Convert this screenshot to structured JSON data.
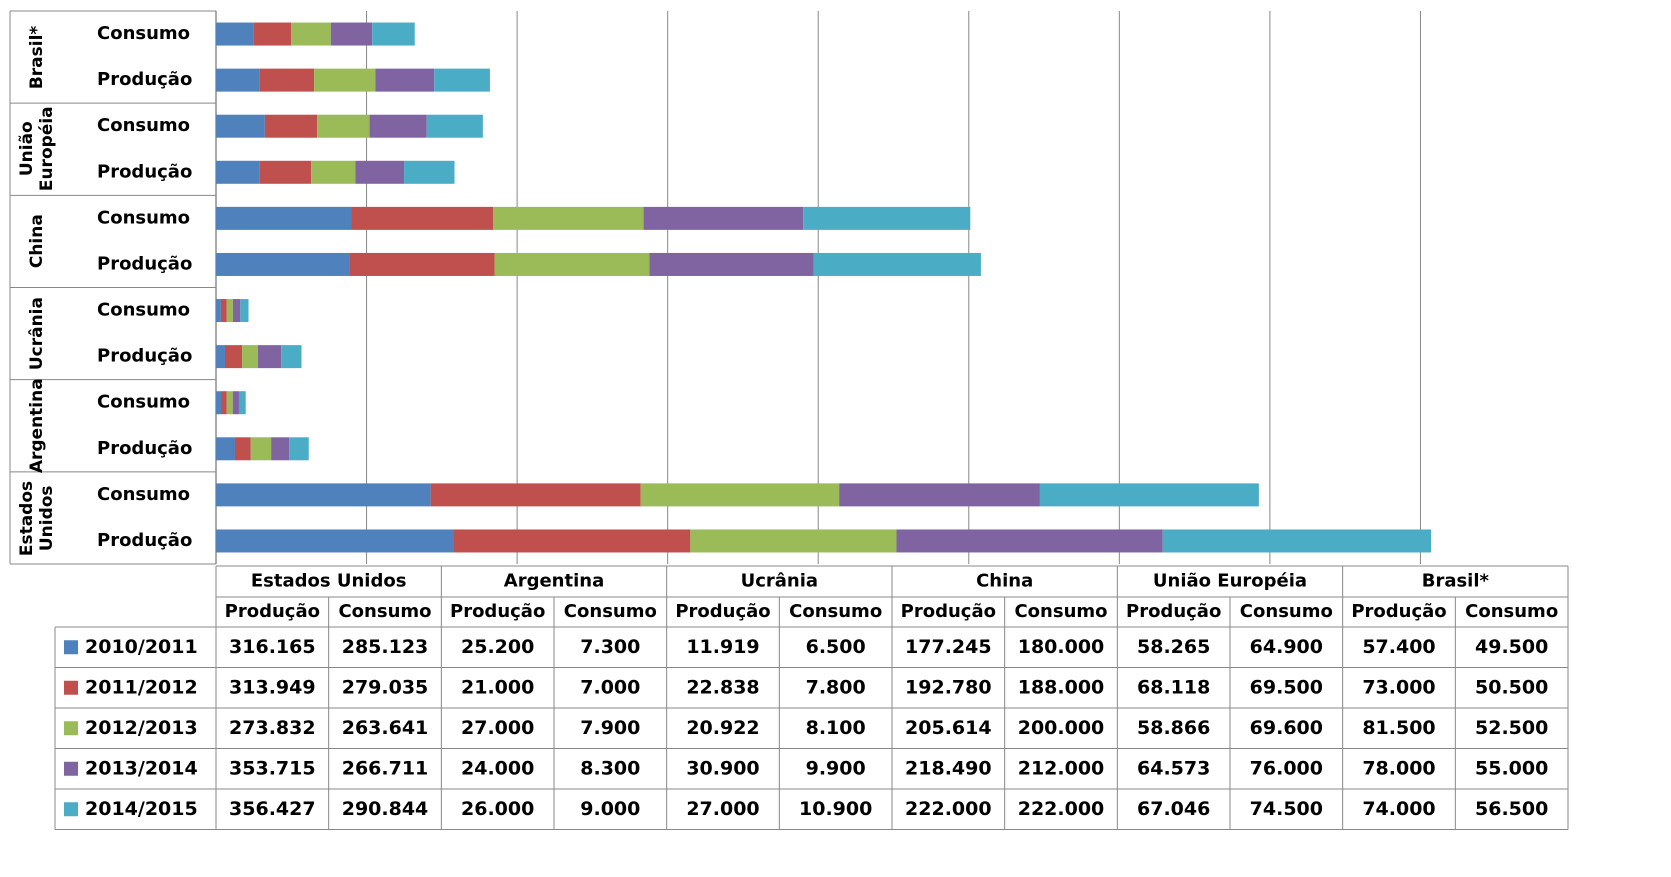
{
  "chart_data": {
    "type": "stacked-bar-horizontal",
    "groups": [
      "Estados Unidos",
      "Argentina",
      "Ucrânia",
      "China",
      "União Européia",
      "Brasil*"
    ],
    "categories": [
      "Produção",
      "Consumo",
      "Produção",
      "Consumo",
      "Produção",
      "Consumo",
      "Produção",
      "Consumo",
      "Produção",
      "Consumo",
      "Produção",
      "Consumo"
    ],
    "xlim": [
      0,
      1800000
    ],
    "xticks": [
      0,
      200000,
      400000,
      600000,
      800000,
      1000000,
      1200000,
      1400000,
      1600000,
      1800000
    ],
    "grid": true,
    "series": [
      {
        "name": "2010/2011",
        "color": "#4f81bd",
        "values": [
          316165,
          285123,
          25200,
          7300,
          11919,
          6500,
          177245,
          180000,
          58265,
          64900,
          57400,
          49500
        ],
        "value_labels": [
          "316.165",
          "285.123",
          "25.200",
          "7.300",
          "11.919",
          "6.500",
          "177.245",
          "180.000",
          "58.265",
          "64.900",
          "57.400",
          "49.500"
        ]
      },
      {
        "name": "2011/2012",
        "color": "#c0504d",
        "values": [
          313949,
          279035,
          21000,
          7000,
          22838,
          7800,
          192780,
          188000,
          68118,
          69500,
          73000,
          50500
        ],
        "value_labels": [
          "313.949",
          "279.035",
          "21.000",
          "7.000",
          "22.838",
          "7.800",
          "192.780",
          "188.000",
          "68.118",
          "69.500",
          "73.000",
          "50.500"
        ]
      },
      {
        "name": "2012/2013",
        "color": "#9bbb59",
        "values": [
          273832,
          263641,
          27000,
          7900,
          20922,
          8100,
          205614,
          200000,
          58866,
          69600,
          81500,
          52500
        ],
        "value_labels": [
          "273.832",
          "263.641",
          "27.000",
          "7.900",
          "20.922",
          "8.100",
          "205.614",
          "200.000",
          "58.866",
          "69.600",
          "81.500",
          "52.500"
        ]
      },
      {
        "name": "2013/2014",
        "color": "#8064a2",
        "values": [
          353715,
          266711,
          24000,
          8300,
          30900,
          9900,
          218490,
          212000,
          64573,
          76000,
          78000,
          55000
        ],
        "value_labels": [
          "353.715",
          "266.711",
          "24.000",
          "8.300",
          "30.900",
          "9.900",
          "218.490",
          "212.000",
          "64.573",
          "76.000",
          "78.000",
          "55.000"
        ]
      },
      {
        "name": "2014/2015",
        "color": "#4bacc6",
        "values": [
          356427,
          290844,
          26000,
          9000,
          27000,
          10900,
          222000,
          222000,
          67046,
          74500,
          74000,
          56500
        ],
        "value_labels": [
          "356.427",
          "290.844",
          "26.000",
          "9.000",
          "27.000",
          "10.900",
          "222.000",
          "222.000",
          "67.046",
          "74.500",
          "74.000",
          "56.500"
        ]
      }
    ]
  }
}
